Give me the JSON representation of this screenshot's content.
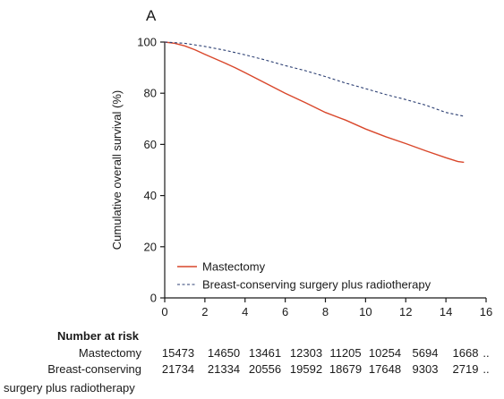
{
  "panel_label": "A",
  "chart_data": {
    "type": "line",
    "title": "",
    "xlabel": "",
    "ylabel": "Cumulative overall survival (%)",
    "xlim": [
      0,
      16
    ],
    "ylim": [
      0,
      100
    ],
    "xticks": [
      "0",
      "2",
      "4",
      "6",
      "8",
      "10",
      "12",
      "14",
      "16"
    ],
    "yticks": [
      "0",
      "20",
      "40",
      "60",
      "80",
      "100"
    ],
    "grid": false,
    "legend_position": "bottom-left",
    "series": [
      {
        "name": "Mastectomy",
        "color": "#d9472b",
        "style": "solid",
        "x": [
          0,
          0.5,
          1,
          1.5,
          2,
          2.5,
          3,
          3.5,
          4,
          5,
          6,
          7,
          8,
          9,
          10,
          11,
          12,
          13,
          14,
          14.6,
          14.9
        ],
        "y": [
          100,
          99.5,
          98.5,
          97,
          95.2,
          93.5,
          91.8,
          90,
          88,
          84,
          80,
          76.3,
          72.5,
          69.5,
          66,
          63,
          60.3,
          57.5,
          54.8,
          53.3,
          53
        ]
      },
      {
        "name": "Breast-conserving surgery plus radiotherapy",
        "color": "#2c3f73",
        "style": "dashed",
        "x": [
          0,
          1,
          2,
          3,
          4,
          5,
          6,
          7,
          8,
          9,
          10,
          11,
          12,
          13,
          14,
          14.9
        ],
        "y": [
          100,
          99.5,
          98.3,
          96.8,
          95,
          93,
          90.8,
          88.8,
          86.5,
          84,
          81.8,
          79.5,
          77.5,
          75.3,
          72.5,
          71
        ]
      }
    ]
  },
  "risk_table": {
    "title": "Number at risk",
    "rows": [
      {
        "name": "Mastectomy",
        "name_line2": "",
        "values": [
          "15473",
          "14650",
          "13461",
          "12303",
          "11205",
          "10254",
          "5694",
          "1668",
          ".."
        ]
      },
      {
        "name": "Breast-conserving",
        "name_line2": "surgery plus radiotherapy",
        "values": [
          "21734",
          "21334",
          "20556",
          "19592",
          "18679",
          "17648",
          "9303",
          "2719",
          ".."
        ]
      }
    ]
  }
}
